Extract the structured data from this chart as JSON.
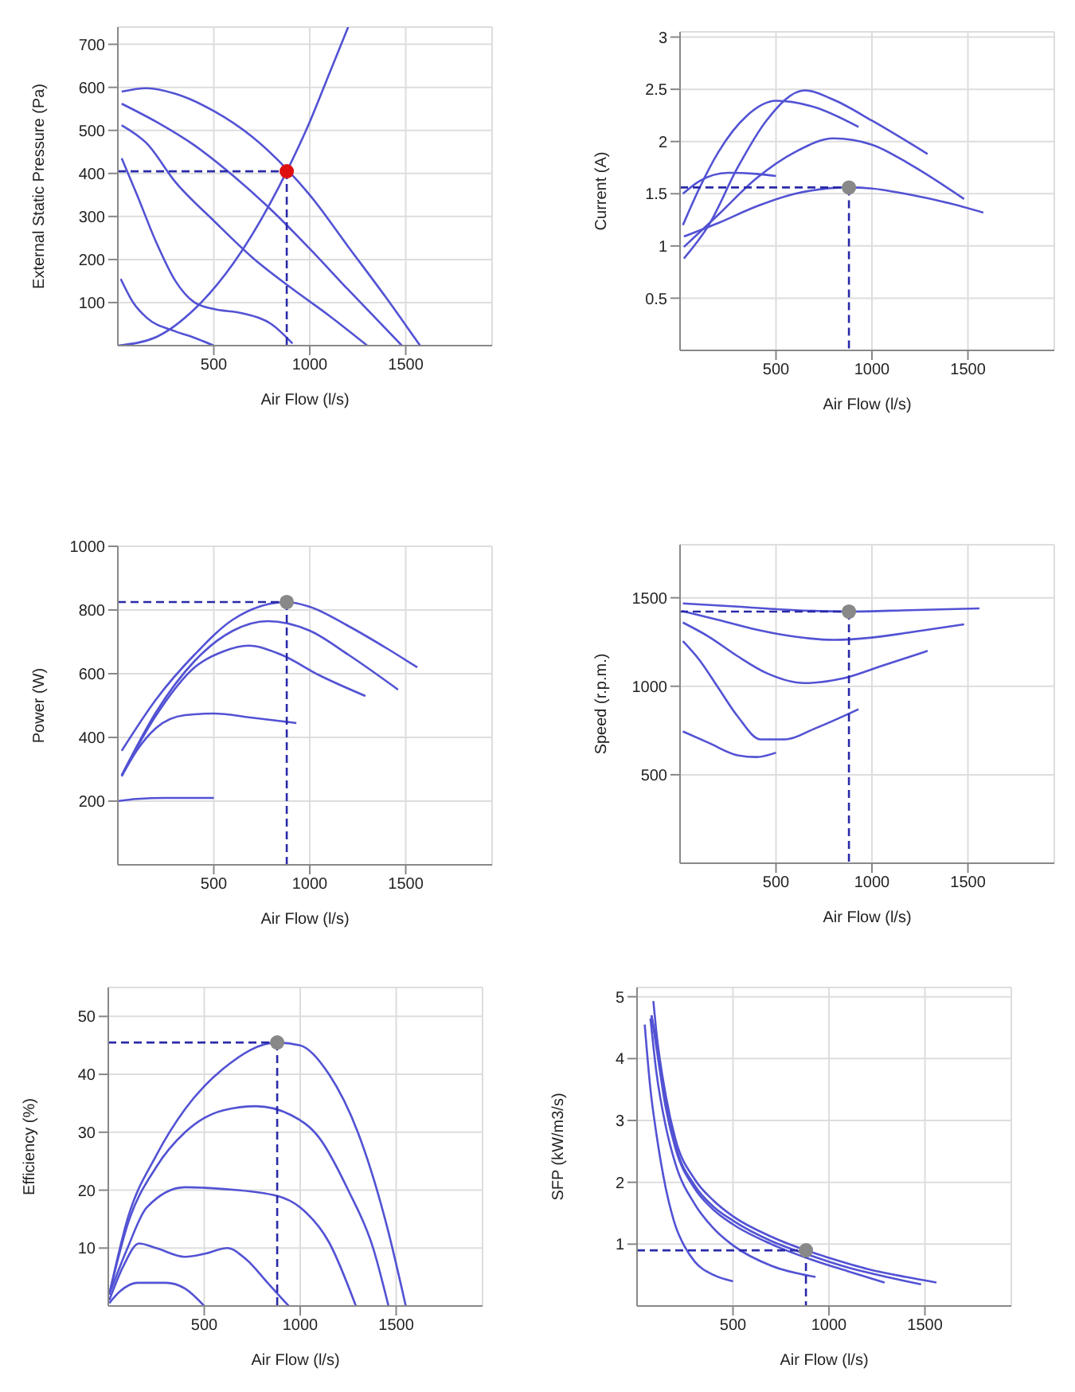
{
  "chart_data": [
    {
      "type": "line",
      "xlabel": "Air Flow (l/s)",
      "ylabel": "External Static Pressure (Pa)",
      "xlim": [
        0,
        1950
      ],
      "xticks": [
        500,
        1000,
        1500
      ],
      "ylim": [
        0,
        740
      ],
      "yticks": [
        100,
        200,
        300,
        400,
        500,
        600,
        700
      ],
      "grid": true,
      "marker": "none",
      "line_style": "solid",
      "series": [
        {
          "color": "#5252d4",
          "x": [
            20,
            150,
            300,
            500,
            700,
            880,
            1000,
            1200,
            1400,
            1575
          ],
          "values": [
            590,
            598,
            585,
            545,
            485,
            410,
            350,
            230,
            110,
            0
          ]
        },
        {
          "color": "#5252d4",
          "x": [
            20,
            200,
            400,
            600,
            800,
            1000,
            1200,
            1480
          ],
          "values": [
            562,
            520,
            465,
            395,
            315,
            225,
            130,
            0
          ]
        },
        {
          "color": "#5252d4",
          "x": [
            20,
            150,
            300,
            500,
            700,
            900,
            1100,
            1300
          ],
          "values": [
            512,
            470,
            380,
            290,
            205,
            135,
            70,
            0
          ]
        },
        {
          "color": "#5252d4",
          "x": [
            20,
            100,
            200,
            300,
            400,
            500,
            650,
            800,
            910
          ],
          "values": [
            435,
            350,
            240,
            150,
            100,
            85,
            75,
            50,
            5
          ]
        },
        {
          "color": "#5252d4",
          "x": [
            15,
            80,
            150,
            300,
            400,
            500
          ],
          "values": [
            155,
            100,
            65,
            33,
            18,
            0
          ]
        },
        {
          "color": "#5252d4",
          "x": [
            0,
            200,
            400,
            600,
            880,
            1000,
            1100,
            1200
          ],
          "values": [
            0,
            20,
            85,
            190,
            405,
            520,
            630,
            740
          ]
        },
        {
          "color": "#2a2aa8",
          "line_style": "dashed",
          "x": [
            0,
            880
          ],
          "values": [
            405,
            405
          ]
        },
        {
          "color": "#2a2aa8",
          "line_style": "dashed",
          "x": [
            880,
            880
          ],
          "values": [
            405,
            0
          ]
        },
        {
          "type": "scatter",
          "marker": "circle",
          "color": "#e01010",
          "x": [
            880
          ],
          "values": [
            405
          ]
        }
      ]
    },
    {
      "type": "line",
      "xlabel": "Air Flow (l/s)",
      "ylabel": "Current (A)",
      "xlim": [
        0,
        1950
      ],
      "xticks": [
        500,
        1000,
        1500
      ],
      "ylim": [
        0,
        3.05
      ],
      "yticks": [
        0.5,
        1,
        1.5,
        2,
        2.5,
        3
      ],
      "grid": true,
      "marker": "none",
      "line_style": "solid",
      "series": [
        {
          "color": "#5252d4",
          "x": [
            20,
            200,
            400,
            600,
            880,
            1000,
            1200,
            1400,
            1580
          ],
          "values": [
            1.09,
            1.22,
            1.38,
            1.5,
            1.56,
            1.55,
            1.49,
            1.41,
            1.32
          ]
        },
        {
          "color": "#5252d4",
          "x": [
            20,
            200,
            400,
            600,
            800,
            1000,
            1200,
            1480
          ],
          "values": [
            0.99,
            1.3,
            1.65,
            1.9,
            2.03,
            1.97,
            1.78,
            1.45
          ]
        },
        {
          "color": "#5252d4",
          "x": [
            20,
            150,
            300,
            450,
            650,
            800,
            1000,
            1290
          ],
          "values": [
            0.88,
            1.2,
            1.75,
            2.2,
            2.49,
            2.4,
            2.2,
            1.88
          ]
        },
        {
          "color": "#5252d4",
          "x": [
            15,
            100,
            200,
            350,
            500,
            700,
            930
          ],
          "values": [
            1.2,
            1.55,
            1.9,
            2.25,
            2.39,
            2.33,
            2.14
          ]
        },
        {
          "color": "#5252d4",
          "x": [
            15,
            100,
            250,
            400,
            500
          ],
          "values": [
            1.5,
            1.62,
            1.7,
            1.69,
            1.67
          ]
        },
        {
          "color": "#2a2aa8",
          "line_style": "dashed",
          "x": [
            0,
            880
          ],
          "values": [
            1.56,
            1.56
          ]
        },
        {
          "color": "#2a2aa8",
          "line_style": "dashed",
          "x": [
            880,
            880
          ],
          "values": [
            1.56,
            0
          ]
        },
        {
          "type": "scatter",
          "marker": "circle",
          "color": "#888888",
          "x": [
            880
          ],
          "values": [
            1.56
          ]
        }
      ]
    },
    {
      "type": "line",
      "xlabel": "Air Flow (l/s)",
      "ylabel": "Power (W)",
      "xlim": [
        0,
        1950
      ],
      "xticks": [
        500,
        1000,
        1500
      ],
      "ylim": [
        0,
        1000
      ],
      "yticks": [
        200,
        400,
        600,
        800,
        1000
      ],
      "grid": true,
      "marker": "none",
      "line_style": "solid",
      "series": [
        {
          "color": "#5252d4",
          "x": [
            20,
            200,
            400,
            600,
            880,
            1000,
            1200,
            1400,
            1560
          ],
          "values": [
            358,
            520,
            660,
            770,
            825,
            810,
            750,
            680,
            620
          ]
        },
        {
          "color": "#5252d4",
          "x": [
            20,
            200,
            400,
            600,
            780,
            1000,
            1200,
            1460
          ],
          "values": [
            281,
            480,
            640,
            735,
            765,
            735,
            660,
            550
          ]
        },
        {
          "color": "#5252d4",
          "x": [
            20,
            200,
            400,
            550,
            680,
            850,
            1050,
            1290
          ],
          "values": [
            281,
            470,
            620,
            670,
            688,
            660,
            595,
            530
          ]
        },
        {
          "color": "#5252d4",
          "x": [
            20,
            100,
            200,
            350,
            500,
            700,
            930
          ],
          "values": [
            278,
            360,
            430,
            470,
            475,
            462,
            445
          ]
        },
        {
          "color": "#5252d4",
          "x": [
            0,
            100,
            250,
            500
          ],
          "values": [
            200,
            207,
            210,
            210
          ]
        },
        {
          "color": "#2a2aa8",
          "line_style": "dashed",
          "x": [
            0,
            880
          ],
          "values": [
            825,
            825
          ]
        },
        {
          "color": "#2a2aa8",
          "line_style": "dashed",
          "x": [
            880,
            880
          ],
          "values": [
            825,
            0
          ]
        },
        {
          "type": "scatter",
          "marker": "circle",
          "color": "#888888",
          "x": [
            880
          ],
          "values": [
            825
          ]
        }
      ]
    },
    {
      "type": "line",
      "xlabel": "Air Flow (l/s)",
      "ylabel": "Speed (r.p.m.)",
      "xlim": [
        0,
        1950
      ],
      "xticks": [
        500,
        1000,
        1500
      ],
      "ylim": [
        0,
        1800
      ],
      "yticks": [
        500,
        1000,
        1500
      ],
      "grid": true,
      "marker": "none",
      "line_style": "solid",
      "series": [
        {
          "color": "#5252d4",
          "x": [
            15,
            300,
            600,
            880,
            1200,
            1560
          ],
          "values": [
            1468,
            1450,
            1430,
            1422,
            1430,
            1440
          ]
        },
        {
          "color": "#5252d4",
          "x": [
            10,
            200,
            400,
            600,
            800,
            1000,
            1200,
            1480
          ],
          "values": [
            1425,
            1375,
            1320,
            1280,
            1262,
            1275,
            1305,
            1350
          ]
        },
        {
          "color": "#5252d4",
          "x": [
            15,
            150,
            300,
            450,
            650,
            850,
            1050,
            1290
          ],
          "values": [
            1360,
            1280,
            1170,
            1075,
            1018,
            1045,
            1115,
            1200
          ]
        },
        {
          "color": "#5252d4",
          "x": [
            15,
            100,
            200,
            300,
            420,
            550,
            700,
            930
          ],
          "values": [
            1255,
            1150,
            990,
            830,
            700,
            700,
            760,
            870
          ]
        },
        {
          "color": "#5252d4",
          "x": [
            15,
            150,
            300,
            400,
            500
          ],
          "values": [
            745,
            680,
            610,
            600,
            625
          ]
        },
        {
          "color": "#2a2aa8",
          "line_style": "dashed",
          "x": [
            0,
            880
          ],
          "values": [
            1422,
            1422
          ]
        },
        {
          "color": "#2a2aa8",
          "line_style": "dashed",
          "x": [
            880,
            880
          ],
          "values": [
            1422,
            0
          ]
        },
        {
          "type": "scatter",
          "marker": "circle",
          "color": "#888888",
          "x": [
            880
          ],
          "values": [
            1422
          ]
        }
      ]
    },
    {
      "type": "line",
      "xlabel": "Air Flow (l/s)",
      "ylabel": "Efficiency (%)",
      "xlim": [
        0,
        1950
      ],
      "xticks": [
        500,
        1000,
        1500
      ],
      "ylim": [
        0,
        55
      ],
      "yticks": [
        10,
        20,
        30,
        40,
        50
      ],
      "grid": true,
      "marker": "none",
      "line_style": "solid",
      "series": [
        {
          "color": "#5252d4",
          "x": [
            5,
            100,
            250,
            400,
            600,
            880,
            1000,
            1150,
            1300,
            1450,
            1550
          ],
          "values": [
            2,
            15,
            26,
            34,
            41,
            45.5,
            45,
            40,
            30,
            14,
            0
          ]
        },
        {
          "color": "#5252d4",
          "x": [
            5,
            100,
            250,
            400,
            600,
            770,
            950,
            1100,
            1250,
            1380,
            1460
          ],
          "values": [
            2,
            14,
            24,
            30,
            33.8,
            34.5,
            33,
            29,
            20,
            10,
            0
          ]
        },
        {
          "color": "#5252d4",
          "x": [
            5,
            100,
            200,
            400,
            600,
            880,
            1000,
            1150,
            1290
          ],
          "values": [
            2,
            10,
            17,
            20.5,
            20.2,
            19,
            17,
            11,
            0
          ]
        },
        {
          "color": "#5252d4",
          "x": [
            5,
            80,
            160,
            250,
            400,
            500,
            620,
            720,
            830,
            940
          ],
          "values": [
            1,
            7,
            10.8,
            10,
            8.5,
            9,
            10,
            8,
            4,
            0
          ]
        },
        {
          "color": "#5252d4",
          "x": [
            5,
            60,
            150,
            300,
            400,
            500
          ],
          "values": [
            0.5,
            2.5,
            4,
            4,
            3,
            0
          ]
        },
        {
          "color": "#2a2aa8",
          "line_style": "dashed",
          "x": [
            0,
            880
          ],
          "values": [
            45.5,
            45.5
          ]
        },
        {
          "color": "#2a2aa8",
          "line_style": "dashed",
          "x": [
            880,
            880
          ],
          "values": [
            45.5,
            0
          ]
        },
        {
          "type": "scatter",
          "marker": "circle",
          "color": "#888888",
          "x": [
            880
          ],
          "values": [
            45.5
          ]
        }
      ]
    },
    {
      "type": "line",
      "xlabel": "Air Flow (l/s)",
      "ylabel": "SFP (kW/m3/s)",
      "xlim": [
        0,
        1950
      ],
      "xticks": [
        500,
        1000,
        1500
      ],
      "ylim": [
        0,
        5.15
      ],
      "yticks": [
        1,
        2,
        3,
        4,
        5
      ],
      "grid": true,
      "marker": "none",
      "line_style": "solid",
      "series": [
        {
          "color": "#5252d4",
          "x": [
            85,
            100,
            150,
            200,
            300,
            400,
            500,
            700,
            880,
            1000,
            1200,
            1400,
            1560
          ],
          "values": [
            4.93,
            4.45,
            3.4,
            2.7,
            2.05,
            1.7,
            1.45,
            1.12,
            0.9,
            0.78,
            0.6,
            0.47,
            0.38
          ]
        },
        {
          "color": "#5252d4",
          "x": [
            75,
            100,
            150,
            200,
            300,
            400,
            500,
            700,
            900,
            1100,
            1300,
            1480
          ],
          "values": [
            4.7,
            4.3,
            3.3,
            2.6,
            1.95,
            1.6,
            1.38,
            1.05,
            0.82,
            0.62,
            0.47,
            0.35
          ]
        },
        {
          "color": "#5252d4",
          "x": [
            75,
            100,
            150,
            200,
            300,
            400,
            500,
            700,
            900,
            1100,
            1290
          ],
          "values": [
            4.7,
            4.2,
            3.2,
            2.55,
            1.9,
            1.55,
            1.32,
            1.0,
            0.76,
            0.56,
            0.38
          ]
        },
        {
          "color": "#5252d4",
          "x": [
            70,
            100,
            150,
            200,
            300,
            400,
            500,
            700,
            930
          ],
          "values": [
            4.65,
            3.8,
            2.9,
            2.3,
            1.65,
            1.25,
            0.98,
            0.65,
            0.47
          ]
        },
        {
          "color": "#5252d4",
          "x": [
            40,
            70,
            100,
            150,
            200,
            250,
            300,
            400,
            500
          ],
          "values": [
            4.55,
            3.5,
            2.8,
            1.9,
            1.3,
            0.95,
            0.72,
            0.5,
            0.4
          ]
        },
        {
          "color": "#2a2aa8",
          "line_style": "dashed",
          "x": [
            0,
            880
          ],
          "values": [
            0.9,
            0.9
          ]
        },
        {
          "color": "#2a2aa8",
          "line_style": "dashed",
          "x": [
            880,
            880
          ],
          "values": [
            0.9,
            0
          ]
        },
        {
          "type": "scatter",
          "marker": "circle",
          "color": "#888888",
          "x": [
            880
          ],
          "values": [
            0.9
          ]
        }
      ]
    }
  ]
}
